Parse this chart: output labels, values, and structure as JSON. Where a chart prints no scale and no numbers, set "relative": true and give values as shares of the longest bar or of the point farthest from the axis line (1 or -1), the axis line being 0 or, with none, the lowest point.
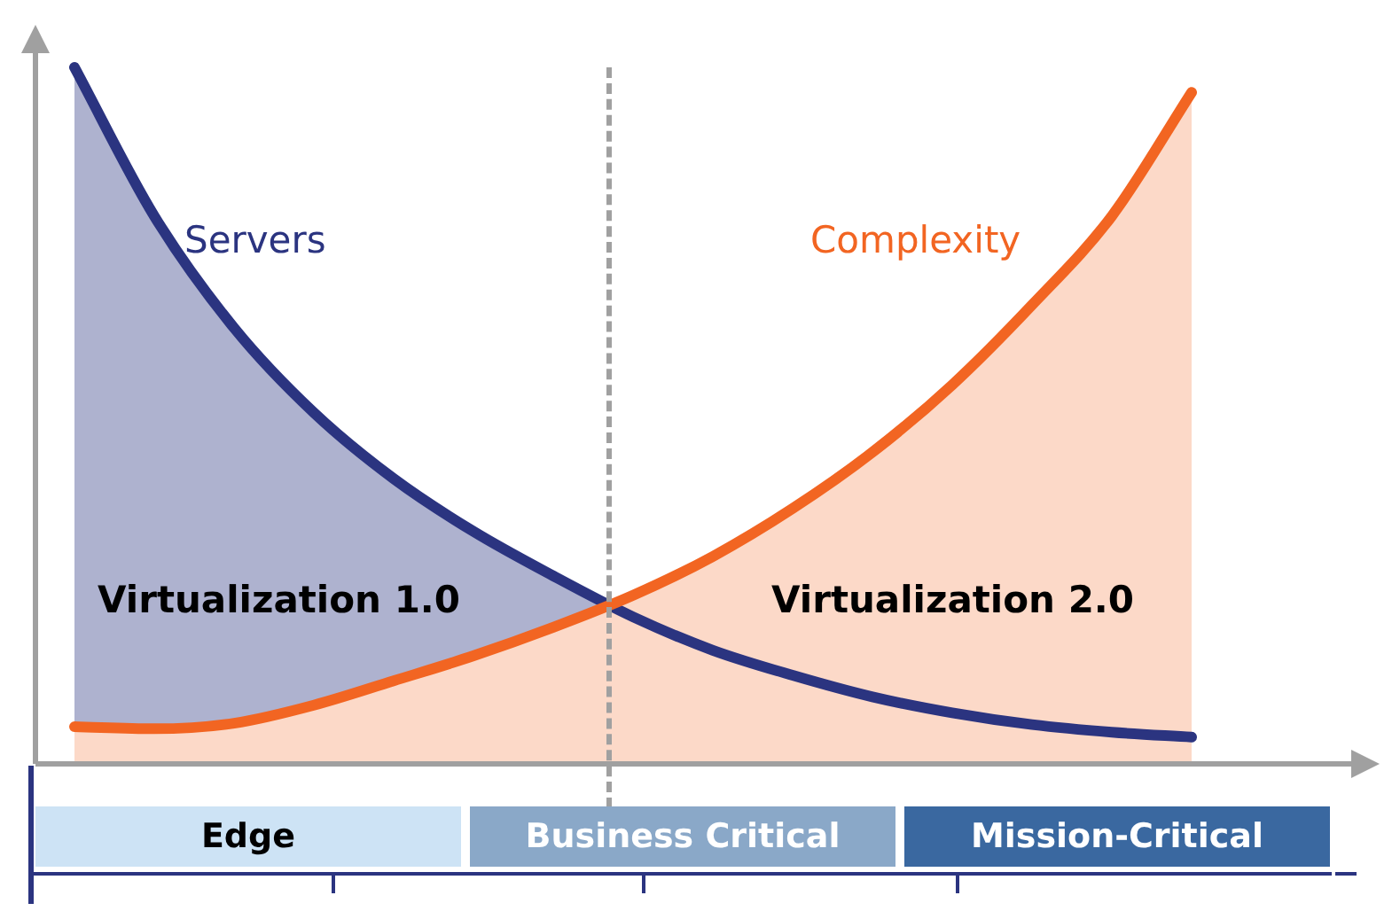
{
  "chart_data": {
    "type": "area",
    "relative": true,
    "tick_labels": false,
    "legend": false,
    "categories": [
      null,
      null,
      null,
      null,
      null,
      null,
      null,
      null,
      null,
      null,
      null,
      null,
      null,
      null,
      null
    ],
    "series": [
      {
        "name": "Servers",
        "color": "#2b3480",
        "values": [
          1,
          0.786,
          0.625,
          0.503,
          0.408,
          0.332,
          0.268,
          0.209,
          0.161,
          0.125,
          0.094,
          0.071,
          0.054,
          0.043,
          0.036
        ]
      },
      {
        "name": "Complexity",
        "color": "#f26522",
        "values": [
          0.051,
          0.048,
          0.056,
          0.082,
          0.117,
          0.153,
          0.194,
          0.24,
          0.296,
          0.365,
          0.446,
          0.543,
          0.658,
          0.786,
          0.964
        ]
      }
    ],
    "annotations": [
      "Virtualization 1.0",
      "Virtualization 2.0",
      "Edge",
      "Business Critical",
      "Mission-Critical"
    ]
  }
}
